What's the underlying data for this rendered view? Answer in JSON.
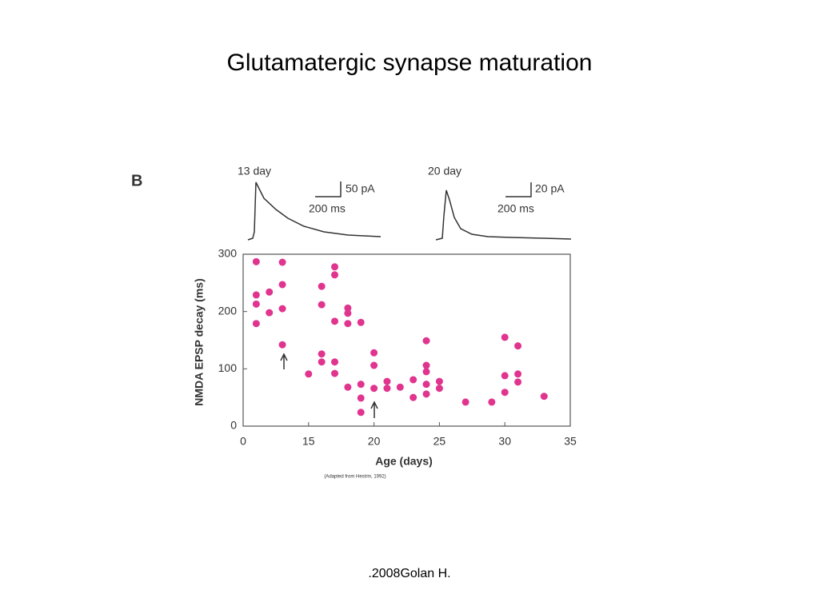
{
  "slide_title": "Glutamatergic synapse maturation",
  "footer": ".2008Golan H.",
  "chart_data": {
    "type": "scatter",
    "panel_label": "B",
    "annotations": [
      "13 day",
      "50 pA",
      "200 ms",
      "20 day",
      "20 pA",
      "200 ms",
      "(Adapted from Hestrin, 1992)"
    ],
    "x_label": "Age (days)",
    "y_label": "NMDA EPSP decay (ms)",
    "xlim": [
      10,
      35
    ],
    "xticks": [
      {
        "value": 10,
        "label": "0"
      },
      15,
      20,
      25,
      30,
      35
    ],
    "ylim": [
      0,
      300
    ],
    "yticks": [
      0,
      100,
      200,
      300
    ],
    "series": [
      {
        "color": "#e0348f",
        "x": [
          11,
          11,
          11,
          11,
          12,
          12,
          13,
          13,
          13,
          13,
          15,
          16,
          16,
          16,
          16,
          17,
          17,
          17,
          17,
          17,
          18,
          18,
          18,
          18,
          19,
          19,
          19,
          19,
          20,
          20,
          20,
          21,
          21,
          22,
          23,
          23,
          24,
          24,
          24,
          24,
          24,
          25,
          25,
          27,
          29,
          30,
          30,
          30,
          31,
          31,
          31,
          33
        ],
        "values": [
          287,
          229,
          213,
          179,
          234,
          198,
          286,
          247,
          205,
          142,
          91,
          244,
          212,
          126,
          112,
          278,
          264,
          183,
          112,
          92,
          206,
          197,
          179,
          68,
          181,
          73,
          49,
          24,
          128,
          106,
          66,
          78,
          66,
          68,
          81,
          50,
          149,
          106,
          95,
          73,
          56,
          78,
          66,
          42,
          42,
          155,
          88,
          59,
          140,
          91,
          77,
          52
        ]
      }
    ]
  }
}
